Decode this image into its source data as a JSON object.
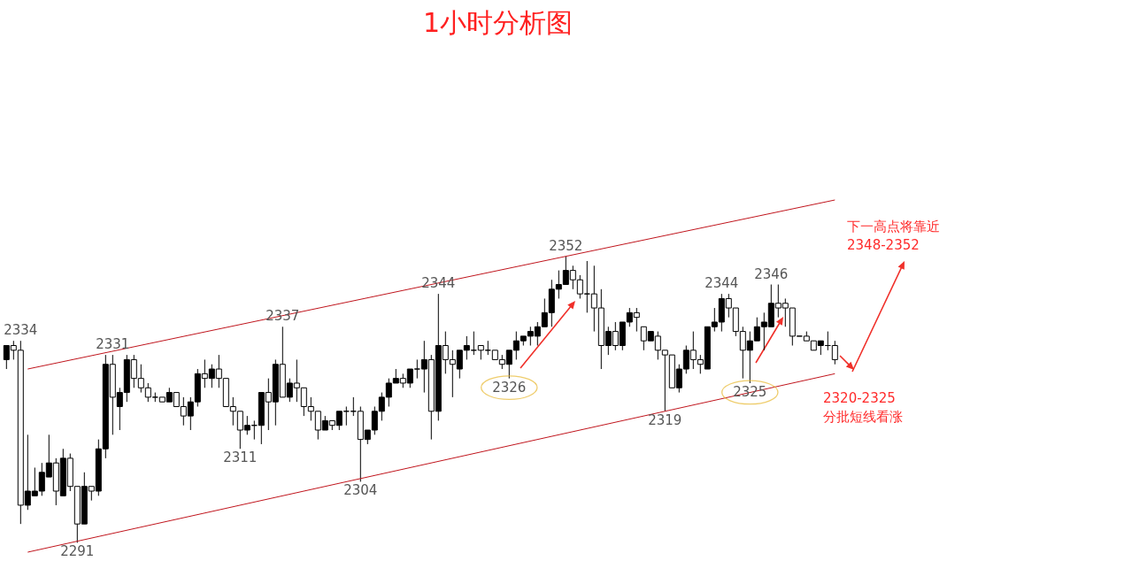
{
  "chart_data": {
    "type": "candlestick",
    "title": "1小时分析图",
    "color": "#000000",
    "categories": [
      null,
      null,
      null,
      null,
      null,
      null,
      null,
      null,
      null,
      null,
      null,
      null,
      null,
      null,
      null,
      null,
      null,
      null,
      null,
      null,
      null,
      null,
      null,
      null,
      null,
      null,
      null,
      null,
      null,
      null,
      null,
      null,
      null,
      null,
      null,
      null,
      null,
      null,
      null,
      null,
      null,
      null,
      null,
      null,
      null,
      null,
      null,
      null,
      null,
      null,
      null,
      null,
      null,
      null,
      null,
      null,
      null,
      null,
      null,
      null,
      null,
      null,
      null,
      null,
      null,
      null,
      null,
      null,
      null,
      null,
      null,
      null,
      null,
      null,
      null,
      null,
      null,
      null,
      null,
      null,
      null,
      null,
      null,
      null,
      null,
      null,
      null,
      null,
      null,
      null,
      null,
      null,
      null,
      null,
      null,
      null,
      null,
      null,
      null,
      null,
      null,
      null,
      null,
      null,
      null,
      null,
      null,
      null,
      null,
      null,
      null,
      null,
      null,
      null,
      null,
      null,
      null,
      null
    ],
    "ohlc": [
      [
        2330,
        2333,
        2328,
        2333
      ],
      [
        2333,
        2334,
        2330,
        2332
      ],
      [
        2332,
        2334,
        2295,
        2299
      ],
      [
        2299,
        2314,
        2298,
        2302
      ],
      [
        2301,
        2307,
        2301,
        2302
      ],
      [
        2302,
        2308,
        2301,
        2306
      ],
      [
        2305,
        2314,
        2305,
        2308
      ],
      [
        2308,
        2309,
        2299,
        2302
      ],
      [
        2301,
        2311,
        2301,
        2309
      ],
      [
        2309,
        2310,
        2302,
        2303
      ],
      [
        2303,
        2303,
        2291,
        2295
      ],
      [
        2295,
        2306,
        2295,
        2303
      ],
      [
        2303,
        2303,
        2300,
        2302
      ],
      [
        2302,
        2313,
        2301,
        2311
      ],
      [
        2311,
        2331,
        2309,
        2329
      ],
      [
        2329,
        2331,
        2314,
        2322
      ],
      [
        2320,
        2324,
        2315,
        2323
      ],
      [
        2323,
        2331,
        2321,
        2330
      ],
      [
        2330,
        2331,
        2324,
        2326
      ],
      [
        2326,
        2329,
        2323,
        2324
      ],
      [
        2324,
        2325,
        2321,
        2322
      ],
      [
        2322,
        2323,
        2321,
        2322
      ],
      [
        2322,
        2322,
        2321,
        2321
      ],
      [
        2321,
        2324,
        2321,
        2323
      ],
      [
        2323,
        2323,
        2320,
        2320
      ],
      [
        2320,
        2322,
        2316,
        2318
      ],
      [
        2318,
        2322,
        2315,
        2321
      ],
      [
        2321,
        2328,
        2320,
        2327
      ],
      [
        2327,
        2330,
        2324,
        2326
      ],
      [
        2326,
        2329,
        2324,
        2328
      ],
      [
        2328,
        2331,
        2324,
        2326
      ],
      [
        2326,
        2326,
        2320,
        2320
      ],
      [
        2320,
        2322,
        2316,
        2319
      ],
      [
        2319,
        2319,
        2311,
        2315
      ],
      [
        2315,
        2318,
        2314,
        2316
      ],
      [
        2316,
        2317,
        2313,
        2316
      ],
      [
        2316,
        2323,
        2312,
        2323
      ],
      [
        2323,
        2326,
        2315,
        2321
      ],
      [
        2321,
        2330,
        2316,
        2329
      ],
      [
        2329,
        2337,
        2322,
        2322
      ],
      [
        2322,
        2326,
        2321,
        2325
      ],
      [
        2325,
        2330,
        2321,
        2324
      ],
      [
        2324,
        2324,
        2318,
        2320
      ],
      [
        2320,
        2322,
        2317,
        2319
      ],
      [
        2319,
        2319,
        2313,
        2315
      ],
      [
        2315,
        2318,
        2315,
        2317
      ],
      [
        2317,
        2317,
        2315,
        2316
      ],
      [
        2316,
        2319,
        2315,
        2319
      ],
      [
        2319,
        2320,
        2316,
        2319
      ],
      [
        2319,
        2322,
        2318,
        2319
      ],
      [
        2319,
        2320,
        2304,
        2313
      ],
      [
        2313,
        2315,
        2312,
        2315
      ],
      [
        2315,
        2320,
        2314,
        2319
      ],
      [
        2319,
        2323,
        2317,
        2322
      ],
      [
        2322,
        2326,
        2320,
        2325
      ],
      [
        2325,
        2328,
        2325,
        2326
      ],
      [
        2326,
        2327,
        2324,
        2325
      ],
      [
        2325,
        2328,
        2324,
        2328
      ],
      [
        2328,
        2330,
        2326,
        2328
      ],
      [
        2328,
        2334,
        2323,
        2330
      ],
      [
        2330,
        2331,
        2313,
        2319
      ],
      [
        2319,
        2344,
        2317,
        2333
      ],
      [
        2333,
        2336,
        2327,
        2330
      ],
      [
        2330,
        2332,
        2322,
        2329
      ],
      [
        2328,
        2332,
        2326,
        2332
      ],
      [
        2332,
        2335,
        2330,
        2333
      ],
      [
        2332,
        2336,
        2331,
        2332
      ],
      [
        2333,
        2333,
        2330,
        2332
      ],
      [
        2332,
        2334,
        2331,
        2332
      ],
      [
        2332,
        2332,
        2330,
        2330
      ],
      [
        2330,
        2331,
        2328,
        2329
      ],
      [
        2329,
        2332,
        2326,
        2332
      ],
      [
        2332,
        2336,
        2330,
        2334
      ],
      [
        2334,
        2335,
        2333,
        2335
      ],
      [
        2335,
        2337,
        2333,
        2336
      ],
      [
        2335,
        2338,
        2333,
        2337
      ],
      [
        2337,
        2343,
        2337,
        2340
      ],
      [
        2340,
        2347,
        2337,
        2345
      ],
      [
        2345,
        2349,
        2343,
        2346
      ],
      [
        2346,
        2352,
        2346,
        2349
      ],
      [
        2349,
        2350,
        2345,
        2347
      ],
      [
        2347,
        2348,
        2343,
        2344
      ],
      [
        2344,
        2351,
        2340,
        2344
      ],
      [
        2344,
        2350,
        2336,
        2341
      ],
      [
        2341,
        2345,
        2328,
        2333
      ],
      [
        2333,
        2337,
        2331,
        2336
      ],
      [
        2336,
        2338,
        2332,
        2333
      ],
      [
        2333,
        2338,
        2332,
        2338
      ],
      [
        2338,
        2341,
        2337,
        2340
      ],
      [
        2340,
        2341,
        2336,
        2339
      ],
      [
        2337,
        2337,
        2332,
        2334
      ],
      [
        2334,
        2336,
        2334,
        2336
      ],
      [
        2335,
        2336,
        2330,
        2332
      ],
      [
        2332,
        2332,
        2319,
        2331
      ],
      [
        2331,
        2331,
        2324,
        2324
      ],
      [
        2324,
        2329,
        2323,
        2328
      ],
      [
        2328,
        2333,
        2327,
        2332
      ],
      [
        2332,
        2336,
        2328,
        2330
      ],
      [
        2330,
        2331,
        2327,
        2329
      ],
      [
        2328,
        2337,
        2328,
        2337
      ],
      [
        2337,
        2341,
        2336,
        2338
      ],
      [
        2338,
        2344,
        2336,
        2343
      ],
      [
        2343,
        2344,
        2339,
        2341
      ],
      [
        2341,
        2341,
        2335,
        2336
      ],
      [
        2336,
        2337,
        2326,
        2332
      ],
      [
        2332,
        2336,
        2325,
        2334
      ],
      [
        2334,
        2339,
        2334,
        2337
      ],
      [
        2337,
        2340,
        2332,
        2338
      ],
      [
        2337,
        2346,
        2337,
        2342
      ],
      [
        2342,
        2346,
        2339,
        2341
      ],
      [
        2342,
        2343,
        2337,
        2341
      ],
      [
        2341,
        2341,
        2333,
        2335
      ],
      [
        2335,
        2335,
        2335,
        2335
      ],
      [
        2335,
        2336,
        2334,
        2334
      ],
      [
        2334,
        2334,
        2332,
        2332
      ],
      [
        2333,
        2334,
        2331,
        2334
      ],
      [
        2333,
        2336,
        2332,
        2333
      ],
      [
        2333,
        2334,
        2329,
        2330
      ]
    ],
    "series": [
      {
        "type": "line",
        "color": "#c0151d",
        "values": [
          null,
          null,
          null,
          2328,
          null,
          null,
          null,
          null,
          null,
          null,
          null,
          null,
          null,
          null,
          null,
          null,
          null,
          null,
          null,
          null,
          null,
          null,
          null,
          null,
          null,
          null,
          null,
          null,
          null,
          null,
          null,
          null,
          null,
          null,
          null,
          null,
          null,
          null,
          null,
          null,
          null,
          null,
          null,
          null,
          null,
          null,
          null,
          null,
          null,
          null,
          null,
          null,
          null,
          null,
          null,
          null,
          null,
          null,
          null,
          null,
          null,
          null,
          null,
          null,
          null,
          null,
          null,
          null,
          null,
          null,
          null,
          null,
          null,
          null,
          null,
          null,
          null,
          null,
          null,
          null,
          null,
          null,
          null,
          null,
          null,
          null,
          null,
          null,
          null,
          null,
          null,
          null,
          null,
          null,
          null,
          null,
          null,
          null,
          null,
          null,
          null,
          null,
          null,
          null,
          null,
          null,
          null,
          null,
          null,
          null,
          null,
          null,
          null,
          null,
          null,
          null,
          null,
          2364
        ]
      },
      {
        "type": "line",
        "color": "#c0151d",
        "values": [
          null,
          null,
          null,
          2289,
          null,
          null,
          null,
          null,
          null,
          null,
          null,
          null,
          null,
          null,
          null,
          null,
          null,
          null,
          null,
          null,
          null,
          null,
          null,
          null,
          null,
          null,
          null,
          null,
          null,
          null,
          null,
          null,
          null,
          null,
          null,
          null,
          null,
          null,
          null,
          null,
          null,
          null,
          null,
          null,
          null,
          null,
          null,
          null,
          null,
          null,
          null,
          null,
          null,
          null,
          null,
          null,
          null,
          null,
          null,
          null,
          null,
          null,
          null,
          null,
          null,
          null,
          null,
          null,
          null,
          null,
          null,
          null,
          null,
          null,
          null,
          null,
          null,
          null,
          null,
          null,
          null,
          null,
          null,
          null,
          null,
          null,
          null,
          null,
          null,
          null,
          null,
          null,
          null,
          null,
          null,
          null,
          null,
          null,
          null,
          null,
          null,
          null,
          null,
          null,
          null,
          null,
          null,
          null,
          null,
          null,
          null,
          null,
          null,
          null,
          null,
          null,
          null,
          2327
        ]
      }
    ],
    "annotations": [
      {
        "text": "2334",
        "y": 2334
      },
      {
        "text": "2291",
        "y": 2291
      },
      {
        "text": "2331",
        "y": 2331
      },
      {
        "text": "2311",
        "y": 2311
      },
      {
        "text": "2337",
        "y": 2337
      },
      {
        "text": "2304",
        "y": 2304
      },
      {
        "text": "2344",
        "y": 2344
      },
      {
        "text": "2326",
        "y": 2326
      },
      {
        "text": "2352",
        "y": 2352
      },
      {
        "text": "2319",
        "y": 2319
      },
      {
        "text": "2344",
        "y": 2344
      },
      {
        "text": "2325",
        "y": 2325
      },
      {
        "text": "2346",
        "y": 2346
      },
      "下一高点将靠近\n2348-2352",
      "2320-2325\n分批短线看涨"
    ]
  }
}
